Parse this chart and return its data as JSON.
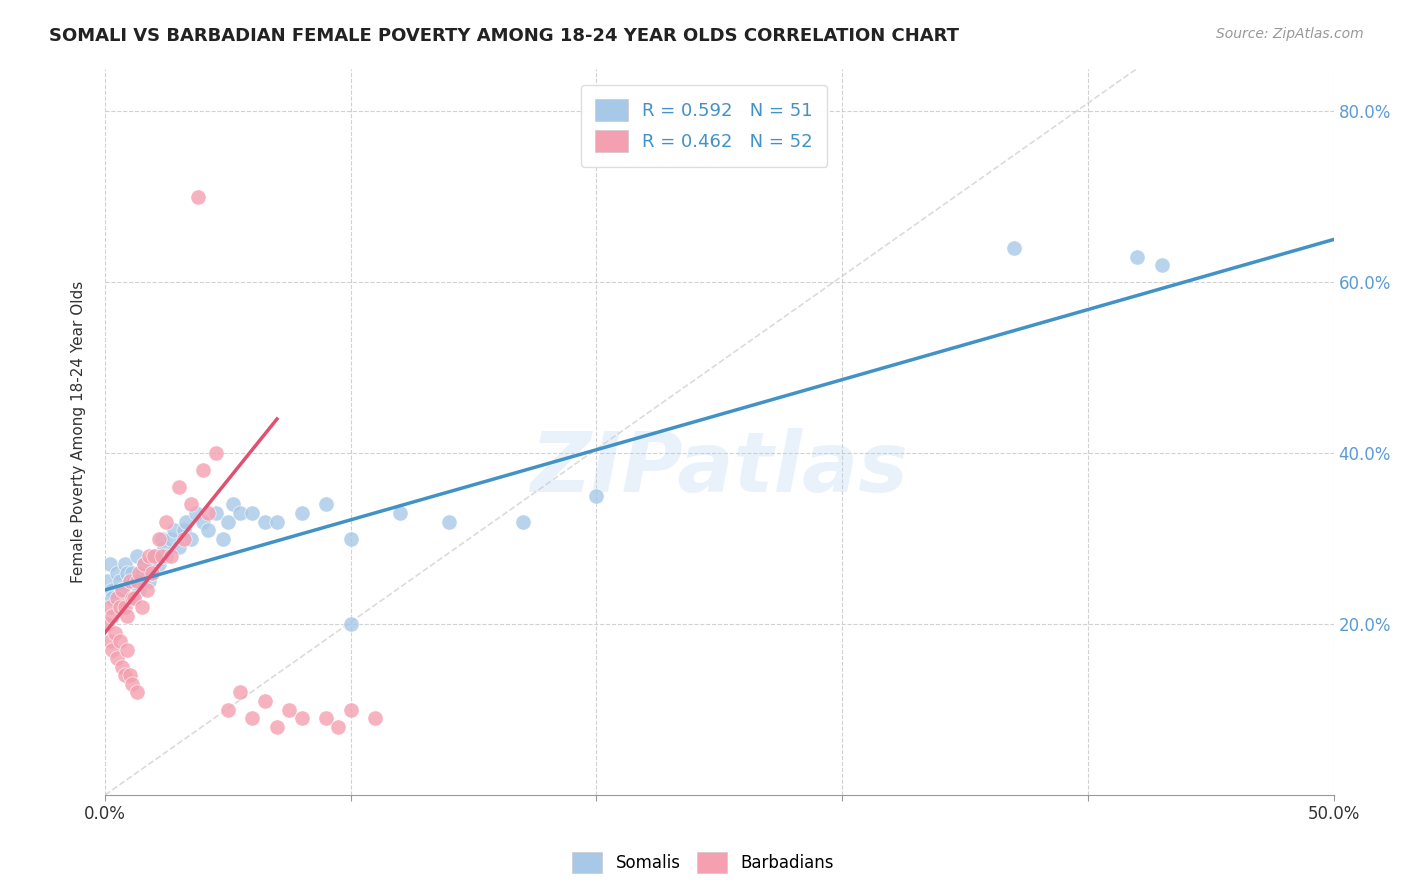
{
  "title": "SOMALI VS BARBADIAN FEMALE POVERTY AMONG 18-24 YEAR OLDS CORRELATION CHART",
  "source": "Source: ZipAtlas.com",
  "ylabel": "Female Poverty Among 18-24 Year Olds",
  "xlim": [
    0.0,
    0.5
  ],
  "ylim": [
    0.0,
    0.85
  ],
  "xtick_positions": [
    0.0,
    0.1,
    0.2,
    0.3,
    0.4,
    0.5
  ],
  "xtick_labels_show": [
    "0.0%",
    "",
    "",
    "",
    "",
    "50.0%"
  ],
  "ytick_positions": [
    0.2,
    0.4,
    0.6,
    0.8
  ],
  "ytick_labels": [
    "20.0%",
    "40.0%",
    "60.0%",
    "80.0%"
  ],
  "background_color": "#ffffff",
  "grid_color": "#cccccc",
  "watermark_text": "ZIPatlas",
  "watermark_color": "#aaccee",
  "somali_color": "#a8c8e8",
  "barbadian_color": "#f4a0b0",
  "somali_line_color": "#4292c6",
  "barbadian_line_color": "#e05070",
  "diagonal_line_color": "#cccccc",
  "somali_scatter_x": [
    0.001,
    0.002,
    0.003,
    0.003,
    0.005,
    0.006,
    0.007,
    0.008,
    0.009,
    0.01,
    0.011,
    0.012,
    0.013,
    0.014,
    0.015,
    0.016,
    0.018,
    0.019,
    0.02,
    0.022,
    0.023,
    0.024,
    0.025,
    0.027,
    0.028,
    0.03,
    0.032,
    0.033,
    0.035,
    0.037,
    0.04,
    0.042,
    0.045,
    0.048,
    0.05,
    0.052,
    0.055,
    0.06,
    0.065,
    0.07,
    0.08,
    0.09,
    0.1,
    0.12,
    0.14,
    0.17,
    0.2,
    0.37,
    0.42,
    0.43,
    0.1
  ],
  "somali_scatter_y": [
    0.25,
    0.27,
    0.24,
    0.23,
    0.26,
    0.25,
    0.24,
    0.27,
    0.26,
    0.25,
    0.26,
    0.25,
    0.28,
    0.24,
    0.26,
    0.27,
    0.25,
    0.26,
    0.28,
    0.27,
    0.3,
    0.29,
    0.28,
    0.3,
    0.31,
    0.29,
    0.31,
    0.32,
    0.3,
    0.33,
    0.32,
    0.31,
    0.33,
    0.3,
    0.32,
    0.34,
    0.33,
    0.33,
    0.32,
    0.32,
    0.33,
    0.34,
    0.3,
    0.33,
    0.32,
    0.32,
    0.35,
    0.64,
    0.63,
    0.62,
    0.2
  ],
  "barbadian_scatter_x": [
    0.001,
    0.002,
    0.002,
    0.003,
    0.003,
    0.004,
    0.005,
    0.005,
    0.006,
    0.006,
    0.007,
    0.007,
    0.008,
    0.008,
    0.009,
    0.009,
    0.01,
    0.01,
    0.011,
    0.011,
    0.012,
    0.013,
    0.013,
    0.014,
    0.015,
    0.016,
    0.017,
    0.018,
    0.019,
    0.02,
    0.022,
    0.023,
    0.025,
    0.027,
    0.03,
    0.032,
    0.035,
    0.038,
    0.04,
    0.042,
    0.045,
    0.05,
    0.055,
    0.06,
    0.065,
    0.07,
    0.075,
    0.08,
    0.09,
    0.095,
    0.1,
    0.11
  ],
  "barbadian_scatter_y": [
    0.2,
    0.22,
    0.18,
    0.21,
    0.17,
    0.19,
    0.23,
    0.16,
    0.22,
    0.18,
    0.24,
    0.15,
    0.22,
    0.14,
    0.21,
    0.17,
    0.25,
    0.14,
    0.23,
    0.13,
    0.23,
    0.25,
    0.12,
    0.26,
    0.22,
    0.27,
    0.24,
    0.28,
    0.26,
    0.28,
    0.3,
    0.28,
    0.32,
    0.28,
    0.36,
    0.3,
    0.34,
    0.7,
    0.38,
    0.33,
    0.4,
    0.1,
    0.12,
    0.09,
    0.11,
    0.08,
    0.1,
    0.09,
    0.09,
    0.08,
    0.1,
    0.09
  ],
  "somali_line_x": [
    0.0,
    0.5
  ],
  "somali_line_y": [
    0.24,
    0.65
  ],
  "barbadian_line_x": [
    0.0,
    0.07
  ],
  "barbadian_line_y": [
    0.19,
    0.44
  ],
  "diagonal_line_x": [
    0.0,
    0.42
  ],
  "diagonal_line_y": [
    0.0,
    0.85
  ]
}
